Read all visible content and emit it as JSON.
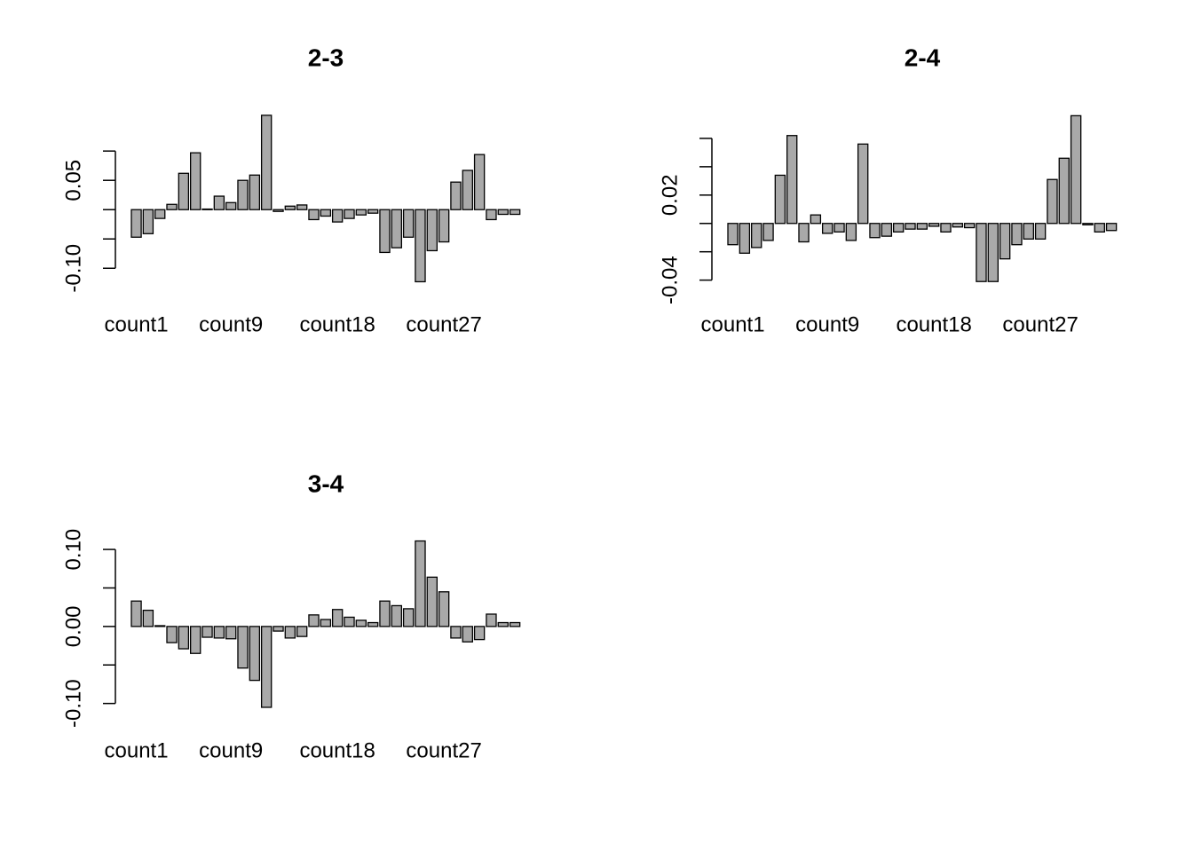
{
  "chart_data": [
    {
      "type": "bar",
      "title": "2-3",
      "color": "#a9a9a9",
      "categories": [
        "count1",
        null,
        null,
        null,
        null,
        null,
        null,
        null,
        "count9",
        null,
        null,
        null,
        null,
        null,
        null,
        null,
        null,
        "count18",
        null,
        null,
        null,
        null,
        null,
        null,
        null,
        null,
        "count27",
        null,
        null,
        null,
        null,
        null,
        null
      ],
      "values": [
        -0.047,
        -0.041,
        -0.015,
        0.009,
        0.062,
        0.097,
        0.001,
        0.023,
        0.012,
        0.05,
        0.059,
        0.161,
        -0.003,
        0.006,
        0.008,
        -0.017,
        -0.011,
        -0.021,
        -0.015,
        -0.009,
        -0.006,
        -0.073,
        -0.065,
        -0.047,
        -0.123,
        -0.07,
        -0.055,
        0.047,
        0.067,
        0.094,
        -0.017,
        -0.008,
        -0.008
      ],
      "ylim": [
        -0.142,
        0.176
      ],
      "yticks": [
        {
          "value": -0.1,
          "label": "-0.10"
        },
        {
          "value": -0.05
        },
        {
          "value": 0
        },
        {
          "value": 0.05,
          "label": "0.05"
        },
        {
          "value": 0.1
        }
      ]
    },
    {
      "type": "bar",
      "title": "2-4",
      "color": "#a9a9a9",
      "categories": [
        "count1",
        null,
        null,
        null,
        null,
        null,
        null,
        null,
        "count9",
        null,
        null,
        null,
        null,
        null,
        null,
        null,
        null,
        "count18",
        null,
        null,
        null,
        null,
        null,
        null,
        null,
        null,
        "count27",
        null,
        null,
        null,
        null,
        null,
        null
      ],
      "values": [
        -0.015,
        -0.021,
        -0.017,
        -0.012,
        0.034,
        0.062,
        -0.013,
        0.006,
        -0.007,
        -0.006,
        -0.012,
        0.056,
        -0.01,
        -0.009,
        -0.006,
        -0.004,
        -0.004,
        -0.002,
        -0.006,
        -0.0025,
        -0.003,
        -0.041,
        -0.041,
        -0.025,
        -0.015,
        -0.011,
        -0.011,
        0.031,
        0.046,
        0.076,
        -0.001,
        -0.006,
        -0.005
      ],
      "ylim": [
        -0.049,
        0.0825
      ],
      "yticks": [
        {
          "value": -0.04,
          "label": "-0.04"
        },
        {
          "value": -0.02
        },
        {
          "value": 0
        },
        {
          "value": 0.02,
          "label": "0.02"
        },
        {
          "value": 0.04
        },
        {
          "value": 0.06
        }
      ]
    },
    {
      "type": "bar",
      "title": "3-4",
      "color": "#a9a9a9",
      "categories": [
        "count1",
        null,
        null,
        null,
        null,
        null,
        null,
        null,
        "count9",
        null,
        null,
        null,
        null,
        null,
        null,
        null,
        null,
        "count18",
        null,
        null,
        null,
        null,
        null,
        null,
        null,
        null,
        "count27",
        null,
        null,
        null,
        null,
        null,
        null
      ],
      "values": [
        0.033,
        0.021,
        0.001,
        -0.021,
        -0.029,
        -0.035,
        -0.014,
        -0.015,
        -0.016,
        -0.054,
        -0.07,
        -0.105,
        -0.006,
        -0.015,
        -0.013,
        0.015,
        0.009,
        0.022,
        0.012,
        0.008,
        0.005,
        0.033,
        0.027,
        0.023,
        0.111,
        0.064,
        0.045,
        -0.015,
        -0.02,
        -0.017,
        0.016,
        0.005,
        0.005
      ],
      "ylim": [
        -0.12,
        0.122
      ],
      "yticks": [
        {
          "value": -0.1,
          "label": "-0.10"
        },
        {
          "value": -0.05
        },
        {
          "value": 0,
          "label": "0.00"
        },
        {
          "value": 0.05
        },
        {
          "value": 0.1,
          "label": "0.10"
        }
      ]
    }
  ]
}
